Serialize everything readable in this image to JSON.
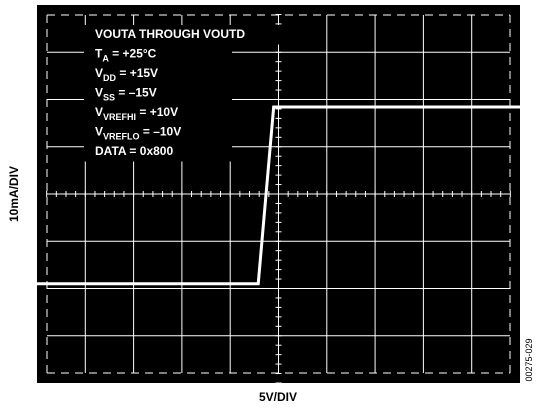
{
  "chart_data": {
    "type": "line",
    "x_label": "5V/DIV",
    "y_label": "10mA/DIV",
    "figure_id": "00275-029",
    "annotations": [
      {
        "main": "VOUTA THROUGH VOUTD"
      },
      {
        "main": "T",
        "sub": "A",
        "rest": " = +25°C"
      },
      {
        "main": "V",
        "sub": "DD",
        "rest": " = +15V"
      },
      {
        "main": "V",
        "sub": "SS",
        "rest": " = –15V"
      },
      {
        "main": "V",
        "sub": "VREFHI",
        "rest": " = +10V"
      },
      {
        "main": "V",
        "sub": "VREFLO",
        "rest": " = –10V"
      },
      {
        "main": "DATA = 0x800"
      }
    ],
    "x": [
      0,
      4.58,
      4.9,
      10
    ],
    "series": [
      {
        "color": "#ffffff",
        "values": [
          2.1,
          2.1,
          5.84,
          5.84
        ]
      }
    ],
    "xlim": [
      0,
      10
    ],
    "ylim": [
      0,
      8
    ],
    "xticks": [
      0,
      1,
      2,
      3,
      4,
      5,
      6,
      7,
      8,
      9,
      10
    ],
    "yticks": [
      0,
      1,
      2,
      3,
      4,
      5,
      6,
      7,
      8
    ],
    "grid": true
  }
}
